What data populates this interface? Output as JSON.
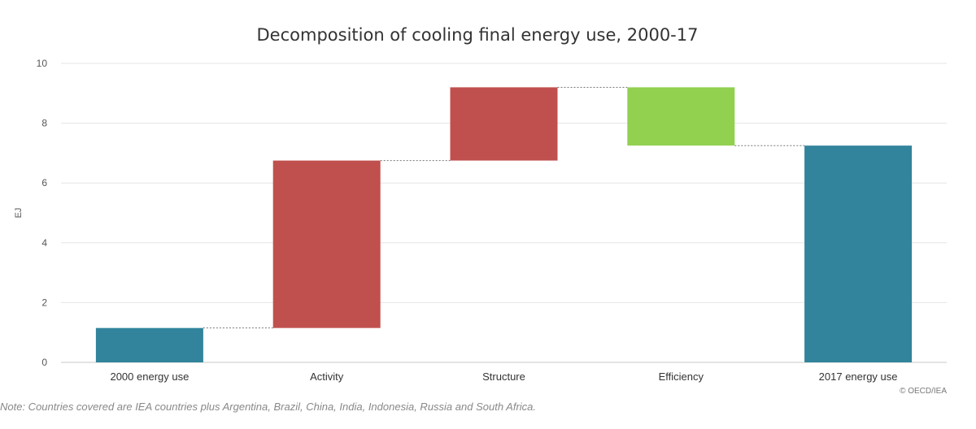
{
  "chart_data": {
    "type": "bar",
    "subtype": "waterfall",
    "title": "Decomposition of cooling final energy use, 2000-17",
    "xlabel": "",
    "ylabel": "EJ",
    "ylim": [
      0,
      10
    ],
    "yticks": [
      0,
      2,
      4,
      6,
      8,
      10
    ],
    "grid": true,
    "categories": [
      "2000 energy use",
      "Activity",
      "Structure",
      "Efficiency",
      "2017 energy use"
    ],
    "bars": [
      {
        "category": "2000 energy use",
        "start": 0,
        "end": 1.15,
        "kind": "total"
      },
      {
        "category": "Activity",
        "start": 1.15,
        "end": 6.75,
        "kind": "increase"
      },
      {
        "category": "Structure",
        "start": 6.75,
        "end": 9.2,
        "kind": "increase"
      },
      {
        "category": "Efficiency",
        "start": 9.2,
        "end": 7.25,
        "kind": "decrease"
      },
      {
        "category": "2017 energy use",
        "start": 0,
        "end": 7.25,
        "kind": "total"
      }
    ],
    "colors": {
      "total": "#31849b",
      "increase": "#c0504d",
      "decrease": "#92d050"
    }
  },
  "note": "Note: Countries covered are IEA countries plus Argentina, Brazil, China, India, Indonesia, Russia and South Africa.",
  "credit": "© OECD/IEA"
}
